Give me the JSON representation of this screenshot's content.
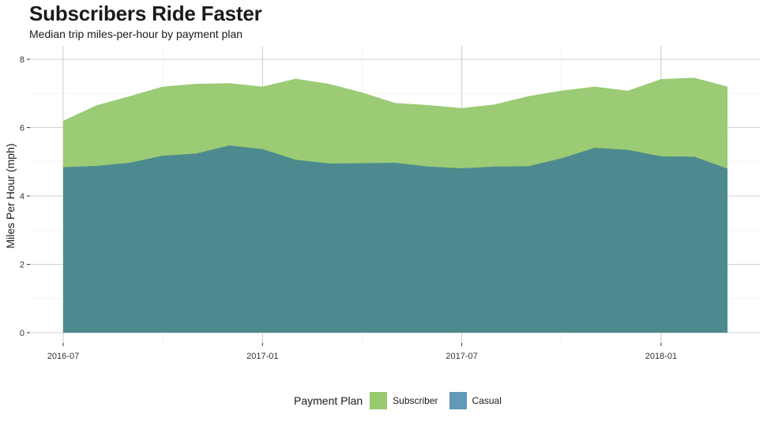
{
  "title": "Subscribers Ride Faster",
  "subtitle": "Median trip miles-per-hour by payment plan",
  "colors": {
    "subscriber": "#98c96f",
    "casual": "#4a8790",
    "casual_legend": "#6298b8",
    "grid": "#d0d0d0"
  },
  "legend": {
    "title": "Payment Plan",
    "items": [
      {
        "label": "Subscriber",
        "color": "#98c96f"
      },
      {
        "label": "Casual",
        "color": "#6298b8"
      }
    ]
  },
  "chart_data": {
    "type": "area",
    "title": "Subscribers Ride Faster",
    "subtitle": "Median trip miles-per-hour by payment plan",
    "xlabel": "",
    "ylabel": "Miles Per Hour (mph)",
    "x": [
      "2016-07",
      "2016-08",
      "2016-09",
      "2016-10",
      "2016-11",
      "2016-12",
      "2017-01",
      "2017-02",
      "2017-03",
      "2017-04",
      "2017-05",
      "2017-06",
      "2017-07",
      "2017-08",
      "2017-09",
      "2017-10",
      "2017-11",
      "2017-12",
      "2018-01",
      "2018-02",
      "2018-03"
    ],
    "xticks": [
      "2016-07",
      "2017-01",
      "2017-07",
      "2018-01"
    ],
    "yticks": [
      0,
      2,
      4,
      6,
      8
    ],
    "ylim": [
      0,
      8.3
    ],
    "grid": true,
    "legend_position": "bottom",
    "series": [
      {
        "name": "Subscriber",
        "values": [
          6.2,
          6.65,
          6.92,
          7.2,
          7.28,
          7.3,
          7.2,
          7.43,
          7.28,
          7.03,
          6.72,
          6.66,
          6.57,
          6.68,
          6.92,
          7.08,
          7.2,
          7.08,
          7.42,
          7.46,
          7.2
        ]
      },
      {
        "name": "Casual",
        "values": [
          4.84,
          4.88,
          4.97,
          5.18,
          5.24,
          5.48,
          5.37,
          5.06,
          4.95,
          4.96,
          4.97,
          4.86,
          4.81,
          4.86,
          4.87,
          5.1,
          5.41,
          5.35,
          5.16,
          5.15,
          4.8
        ]
      }
    ]
  }
}
